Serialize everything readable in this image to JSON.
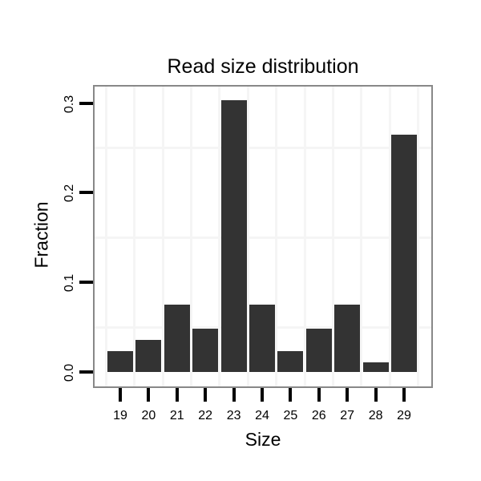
{
  "title": "Read size distribution",
  "chart_data": {
    "type": "bar",
    "title": "Read size distribution",
    "xlabel": "Size",
    "ylabel": "Fraction",
    "categories": [
      "19",
      "20",
      "21",
      "22",
      "23",
      "24",
      "25",
      "26",
      "27",
      "28",
      "29"
    ],
    "values": [
      0.023,
      0.036,
      0.075,
      0.048,
      0.303,
      0.075,
      0.023,
      0.048,
      0.075,
      0.011,
      0.265
    ],
    "y_ticks": [
      0.0,
      0.1,
      0.2,
      0.3
    ],
    "y_tick_labels": [
      "0.0",
      "0.1",
      "0.2",
      "0.3"
    ],
    "ylim": [
      -0.016,
      0.318
    ],
    "grid": "minor-only",
    "minor_y_gridlines": [
      0.05,
      0.15,
      0.25
    ],
    "legend": "none",
    "colors": {
      "bar_fill": "#333333",
      "panel_border": "#888888",
      "gridline": "#f5f5f5",
      "tick": "#000000",
      "text": "#000000",
      "background": "#ffffff"
    }
  }
}
